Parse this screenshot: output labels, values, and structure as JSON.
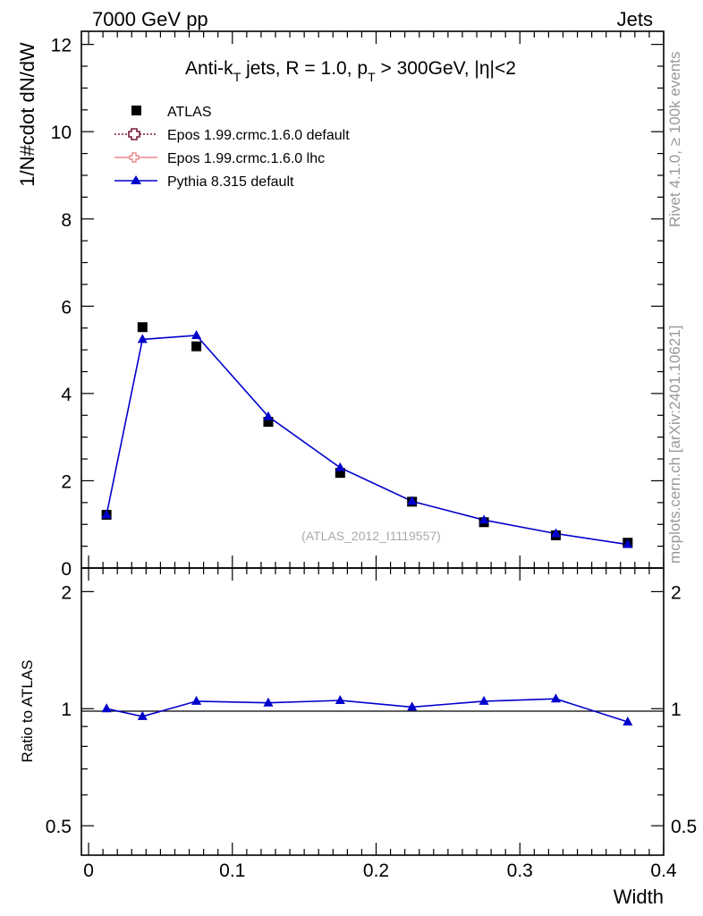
{
  "header": {
    "left": "7000 GeV pp",
    "right": "Jets"
  },
  "side_labels": {
    "rivet": "Rivet 4.1.0, ≥ 100k events",
    "mcplots": "mcplots.cern.ch [arXiv:2401.10621]"
  },
  "plot_title": {
    "part1": "Anti-k",
    "sub1": "T",
    "part2": " jets, R = 1.0, p",
    "sub2": "T",
    "part3": " > 300GeV, |η|<2"
  },
  "analysis_id": "(ATLAS_2012_I1119557)",
  "legend": [
    {
      "label": "ATLAS",
      "color": "#000000",
      "marker": "square"
    },
    {
      "label": "Epos 1.99.crmc.1.6.0 default",
      "color": "#7a1a3a",
      "marker": "open-cross"
    },
    {
      "label": "Epos 1.99.crmc.1.6.0 lhc",
      "color": "#e88a8a",
      "marker": "open-cross"
    },
    {
      "label": "Pythia 8.315 default",
      "color": "#0000cc",
      "marker": "triangle"
    }
  ],
  "chart_data": [
    {
      "type": "scatter",
      "title": "Anti-kT jets, R = 1.0, pT > 300GeV, |η|<2",
      "xlabel": "Width",
      "ylabel": "1/N#cdot dN/dW",
      "xlim": [
        -0.005,
        0.4
      ],
      "ylim": [
        0,
        12.3
      ],
      "yticks": [
        0,
        2,
        4,
        6,
        8,
        10,
        12
      ],
      "ytick_labels": [
        "0",
        "2",
        "4",
        "6",
        "8",
        "10",
        "12"
      ],
      "x": [
        0.0125,
        0.0375,
        0.075,
        0.125,
        0.175,
        0.225,
        0.275,
        0.325,
        0.375
      ],
      "series": [
        {
          "name": "ATLAS",
          "values": [
            1.22,
            5.52,
            5.08,
            3.35,
            2.18,
            1.52,
            1.05,
            0.75,
            0.58
          ]
        },
        {
          "name": "Pythia 8.315 default",
          "values": [
            1.22,
            5.24,
            5.33,
            3.47,
            2.3,
            1.53,
            1.1,
            0.79,
            0.54
          ]
        }
      ]
    },
    {
      "type": "line",
      "title": "",
      "xlabel": "Width",
      "ylabel": "Ratio to ATLAS",
      "xlim": [
        -0.005,
        0.4
      ],
      "ylim": [
        0.42,
        2.3
      ],
      "yscale": "log",
      "xticks": [
        0,
        0.1,
        0.2,
        0.3,
        0.4
      ],
      "xtick_labels": [
        "0",
        "0.1",
        "0.2",
        "0.3",
        "0.4"
      ],
      "yticks": [
        0.5,
        1,
        2
      ],
      "ytick_labels": [
        "0.5",
        "1",
        "2"
      ],
      "x": [
        0.0125,
        0.0375,
        0.075,
        0.125,
        0.175,
        0.225,
        0.275,
        0.325,
        0.375
      ],
      "series": [
        {
          "name": "Pythia 8.315 default / ATLAS",
          "values": [
            1.0,
            0.955,
            1.045,
            1.035,
            1.05,
            1.01,
            1.045,
            1.06,
            0.925
          ]
        }
      ]
    }
  ]
}
